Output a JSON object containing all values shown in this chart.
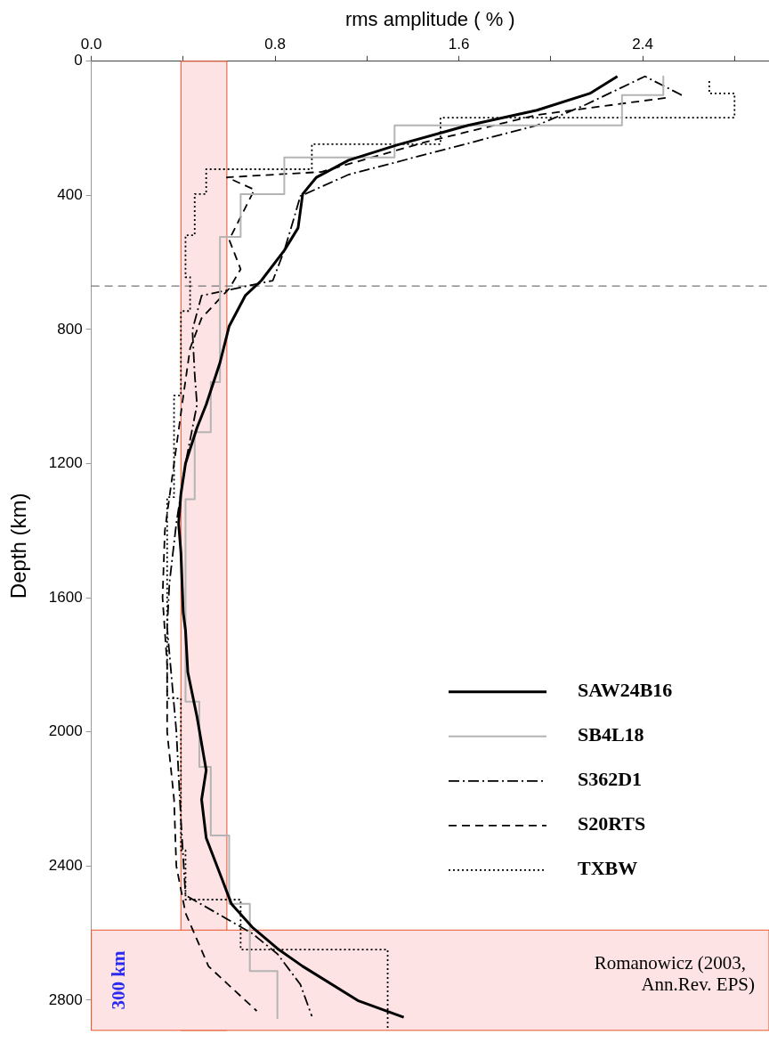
{
  "chart_data": {
    "type": "line",
    "xlabel": "rms amplitude ( % )",
    "ylabel": "Depth (km)",
    "xlim": [
      0,
      2.95
    ],
    "xticks": [
      {
        "value": 0,
        "label": "0.0"
      },
      {
        "value": 0.4,
        "label": null
      },
      {
        "value": 0.8,
        "label": "0.8"
      },
      {
        "value": 1.2,
        "label": null
      },
      {
        "value": 1.6,
        "label": "1.6"
      },
      {
        "value": 2.0,
        "label": null
      },
      {
        "value": 2.4,
        "label": "2.4"
      },
      {
        "value": 2.8,
        "label": null
      }
    ],
    "ylim": [
      2890,
      0
    ],
    "yticks": [
      0,
      400,
      800,
      1200,
      1600,
      2000,
      2400,
      2800
    ],
    "grid": false,
    "legend": "bottom right",
    "series": [
      {
        "name": "SAW24B16",
        "color": "#000000",
        "line_style": "solid",
        "x": [
          2.29,
          2.17,
          1.94,
          1.64,
          1.33,
          1.12,
          0.98,
          0.92,
          0.9,
          0.84,
          0.74,
          0.67,
          0.6,
          0.56,
          0.5,
          0.46,
          0.41,
          0.39,
          0.38,
          0.39,
          0.4,
          0.41,
          0.42,
          0.46,
          0.5,
          0.48,
          0.5,
          0.57,
          0.61,
          0.7,
          0.81,
          0.92,
          1.16,
          1.36
        ],
        "values": [
          45,
          96,
          146,
          191,
          250,
          295,
          346,
          396,
          497,
          564,
          654,
          699,
          790,
          899,
          1024,
          1093,
          1199,
          1290,
          1378,
          1465,
          1644,
          1697,
          1822,
          1955,
          2114,
          2202,
          2316,
          2441,
          2513,
          2582,
          2646,
          2699,
          2801,
          2851
        ]
      },
      {
        "name": "SB4L18",
        "color": "#b4b4b4",
        "line_style": "solid",
        "x": [
          2.49,
          2.49,
          2.31,
          2.31,
          1.32,
          1.32,
          0.84,
          0.84,
          0.65,
          0.65,
          0.56,
          0.56,
          0.52,
          0.52,
          0.45,
          0.45,
          0.41,
          0.41,
          0.47,
          0.47,
          0.52,
          0.52,
          0.6,
          0.6,
          0.69,
          0.69,
          0.81,
          0.81
        ],
        "values": [
          45,
          101,
          101,
          191,
          191,
          287,
          287,
          396,
          396,
          524,
          524,
          957,
          957,
          1106,
          1106,
          1306,
          1306,
          1910,
          1910,
          2104,
          2104,
          2309,
          2309,
          2513,
          2513,
          2713,
          2713,
          2854
        ]
      },
      {
        "name": "S362D1",
        "color": "#000000",
        "line_style": "dashdot",
        "x": [
          2.57,
          2.41,
          2.15,
          1.94,
          1.46,
          1.12,
          0.91,
          0.88,
          0.84,
          0.79,
          0.48,
          0.44,
          0.45,
          0.46,
          0.41,
          0.37,
          0.34,
          0.33,
          0.37,
          0.39,
          0.41,
          0.7,
          0.81,
          0.91,
          0.96
        ],
        "values": [
          101,
          45,
          130,
          191,
          277,
          338,
          402,
          473,
          564,
          654,
          699,
          801,
          934,
          1024,
          1199,
          1378,
          1556,
          1689,
          1997,
          2263,
          2487,
          2601,
          2662,
          2753,
          2848
        ]
      },
      {
        "name": "S20RTS",
        "color": "#000000",
        "line_style": "dashed",
        "x": [
          2.5,
          1.94,
          1.46,
          1.0,
          0.59,
          0.71,
          0.6,
          0.65,
          0.6,
          0.48,
          0.43,
          0.4,
          0.36,
          0.32,
          0.31,
          0.33,
          0.33,
          0.36,
          0.37,
          0.41,
          0.51,
          0.72
        ],
        "values": [
          109,
          160,
          240,
          330,
          346,
          383,
          532,
          620,
          678,
          766,
          856,
          1000,
          1200,
          1400,
          1600,
          1800,
          2000,
          2200,
          2400,
          2540,
          2699,
          2832
        ]
      },
      {
        "name": "TXBW",
        "color": "#000000",
        "line_style": "dotted",
        "x": [
          2.69,
          2.69,
          2.8,
          2.8,
          1.52,
          1.52,
          0.96,
          0.96,
          0.5,
          0.5,
          0.45,
          0.45,
          0.41,
          0.41,
          0.43,
          0.43,
          0.39,
          0.39,
          0.36,
          0.36,
          0.33,
          0.33,
          0.39,
          0.39,
          0.41,
          0.41,
          0.65,
          0.65,
          1.29,
          1.29
        ],
        "values": [
          59,
          96,
          96,
          168,
          168,
          247,
          247,
          322,
          322,
          396,
          396,
          519,
          519,
          644,
          644,
          745,
          745,
          997,
          997,
          1300,
          1300,
          1900,
          1900,
          2353,
          2353,
          2500,
          2500,
          2649,
          2649,
          2890
        ]
      }
    ],
    "ref_lines": [
      {
        "axis": "y",
        "value": 670,
        "color": "#777777",
        "line_style": "dashed"
      }
    ],
    "bands": [
      {
        "axis": "x",
        "from": 0.39,
        "to": 0.59,
        "color": "#fde3e3"
      },
      {
        "axis": "y",
        "from": 2591,
        "to": 2890,
        "label": "300 km",
        "color": "#fde3e3"
      }
    ],
    "annotations": [
      "Romanowicz (2003, Ann.Rev. EPS)"
    ]
  }
}
